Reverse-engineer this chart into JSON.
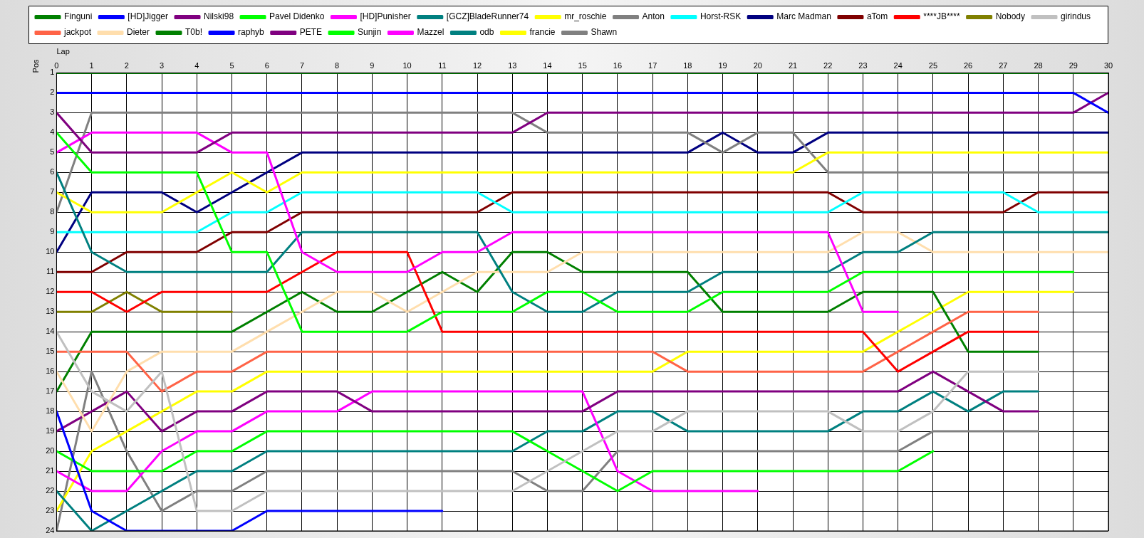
{
  "chart_data": {
    "type": "line",
    "xlabel": "Lap",
    "ylabel": "Pos",
    "x": [
      0,
      1,
      2,
      3,
      4,
      5,
      6,
      7,
      8,
      9,
      10,
      11,
      12,
      13,
      14,
      15,
      16,
      17,
      18,
      19,
      20,
      21,
      22,
      23,
      24,
      25,
      26,
      27,
      28,
      29,
      30
    ],
    "xlim": [
      0,
      30
    ],
    "xticks": [
      0,
      1,
      2,
      3,
      4,
      5,
      6,
      7,
      8,
      9,
      10,
      11,
      12,
      13,
      14,
      15,
      16,
      17,
      18,
      19,
      20,
      21,
      22,
      23,
      24,
      25,
      26,
      27,
      28,
      29,
      30
    ],
    "ylim": [
      24,
      1
    ],
    "yticks": [
      1,
      2,
      3,
      4,
      5,
      6,
      7,
      8,
      9,
      10,
      11,
      12,
      13,
      14,
      15,
      16,
      17,
      18,
      19,
      20,
      21,
      22,
      23,
      24
    ],
    "grid": true,
    "legend": "top",
    "marker": "none",
    "line_style": "solid",
    "series": [
      {
        "name": "Finguni",
        "color": "#008000",
        "values": [
          1,
          1,
          1,
          1,
          1,
          1,
          1,
          1,
          1,
          1,
          1,
          1,
          1,
          1,
          1,
          1,
          1,
          1,
          1,
          1,
          1,
          1,
          1,
          1,
          1,
          1,
          1,
          1,
          1,
          1,
          1
        ]
      },
      {
        "name": "[HD]Jigger",
        "color": "#0000ff",
        "values": [
          2,
          2,
          2,
          2,
          2,
          2,
          2,
          2,
          2,
          2,
          2,
          2,
          2,
          2,
          2,
          2,
          2,
          2,
          2,
          2,
          2,
          2,
          2,
          2,
          2,
          2,
          2,
          2,
          2,
          2,
          3
        ]
      },
      {
        "name": "Nilski98",
        "color": "#800080",
        "values": [
          3,
          5,
          5,
          5,
          5,
          4,
          4,
          4,
          4,
          4,
          4,
          4,
          4,
          4,
          3,
          3,
          3,
          3,
          3,
          3,
          3,
          3,
          3,
          3,
          3,
          3,
          3,
          3,
          3,
          3,
          2
        ]
      },
      {
        "name": "Pavel Didenko",
        "color": "#00ff00",
        "values": [
          4,
          6,
          6,
          6,
          6,
          10,
          10,
          14,
          14,
          14,
          14,
          13,
          13,
          13,
          12,
          12,
          13,
          13,
          13,
          12,
          12,
          12,
          12,
          11,
          11,
          11,
          11,
          11,
          11,
          11,
          null
        ]
      },
      {
        "name": "[HD]Punisher",
        "color": "#ff00ff",
        "values": [
          5,
          4,
          4,
          4,
          4,
          5,
          5,
          10,
          11,
          11,
          11,
          10,
          10,
          9,
          9,
          9,
          9,
          9,
          9,
          9,
          9,
          9,
          9,
          13,
          13,
          null,
          null,
          null,
          null,
          null,
          null
        ]
      },
      {
        "name": "[GCZ]BladeRunner74",
        "color": "#008080",
        "values": [
          6,
          10,
          11,
          11,
          11,
          11,
          11,
          9,
          9,
          9,
          9,
          9,
          9,
          12,
          13,
          13,
          12,
          12,
          12,
          11,
          11,
          11,
          11,
          10,
          10,
          9,
          9,
          9,
          9,
          9,
          9
        ]
      },
      {
        "name": "mr_roschie",
        "color": "#ffff00",
        "values": [
          7,
          8,
          8,
          8,
          7,
          6,
          7,
          6,
          6,
          6,
          6,
          6,
          6,
          6,
          6,
          6,
          6,
          6,
          6,
          6,
          6,
          6,
          5,
          5,
          5,
          5,
          5,
          5,
          5,
          5,
          5
        ]
      },
      {
        "name": "Anton",
        "color": "#808080",
        "values": [
          8,
          3,
          3,
          3,
          3,
          3,
          3,
          3,
          3,
          3,
          3,
          3,
          3,
          3,
          4,
          4,
          4,
          4,
          4,
          5,
          4,
          4,
          6,
          6,
          6,
          6,
          6,
          6,
          6,
          6,
          6
        ]
      },
      {
        "name": "Horst-RSK",
        "color": "#00ffff",
        "values": [
          9,
          9,
          9,
          9,
          9,
          8,
          8,
          7,
          7,
          7,
          7,
          7,
          7,
          8,
          8,
          8,
          8,
          8,
          8,
          8,
          8,
          8,
          8,
          7,
          7,
          7,
          7,
          7,
          8,
          8,
          8
        ]
      },
      {
        "name": "Marc Madman",
        "color": "#000080",
        "values": [
          10,
          7,
          7,
          7,
          8,
          7,
          6,
          5,
          5,
          5,
          5,
          5,
          5,
          5,
          5,
          5,
          5,
          5,
          5,
          4,
          5,
          5,
          4,
          4,
          4,
          4,
          4,
          4,
          4,
          4,
          4
        ]
      },
      {
        "name": "aTom",
        "color": "#800000",
        "values": [
          11,
          11,
          10,
          10,
          10,
          9,
          9,
          8,
          8,
          8,
          8,
          8,
          8,
          7,
          7,
          7,
          7,
          7,
          7,
          7,
          7,
          7,
          7,
          8,
          8,
          8,
          8,
          8,
          7,
          7,
          7
        ]
      },
      {
        "name": "****JB****",
        "color": "#ff0000",
        "values": [
          12,
          12,
          13,
          12,
          12,
          12,
          12,
          11,
          10,
          10,
          10,
          14,
          14,
          14,
          14,
          14,
          14,
          14,
          14,
          14,
          14,
          14,
          14,
          14,
          16,
          15,
          14,
          14,
          14,
          null,
          null
        ]
      },
      {
        "name": "Nobody",
        "color": "#808000",
        "values": [
          13,
          13,
          12,
          13,
          13,
          13,
          null,
          null,
          null,
          null,
          null,
          null,
          null,
          null,
          null,
          null,
          null,
          null,
          null,
          null,
          null,
          null,
          null,
          null,
          null,
          null,
          null,
          null,
          null,
          null,
          null
        ]
      },
      {
        "name": "girindus",
        "color": "#c0c0c0",
        "values": [
          14,
          17,
          18,
          16,
          23,
          23,
          22,
          22,
          22,
          22,
          22,
          22,
          22,
          22,
          21,
          20,
          19,
          19,
          18,
          18,
          18,
          18,
          18,
          19,
          19,
          18,
          16,
          16,
          16,
          null,
          null
        ]
      },
      {
        "name": "jackpot",
        "color": "#ff6347",
        "values": [
          15,
          15,
          15,
          17,
          16,
          16,
          15,
          15,
          15,
          15,
          15,
          15,
          15,
          15,
          15,
          15,
          15,
          15,
          16,
          16,
          16,
          16,
          16,
          16,
          15,
          14,
          13,
          13,
          13,
          null,
          null
        ]
      },
      {
        "name": "Dieter",
        "color": "#ffdead",
        "values": [
          16,
          19,
          16,
          15,
          15,
          15,
          14,
          13,
          12,
          12,
          13,
          12,
          11,
          11,
          11,
          10,
          10,
          10,
          10,
          10,
          10,
          10,
          10,
          9,
          9,
          10,
          10,
          10,
          10,
          10,
          10
        ]
      },
      {
        "name": "T0b!",
        "color": "#008000",
        "values": [
          17,
          14,
          14,
          14,
          14,
          14,
          13,
          12,
          13,
          13,
          12,
          11,
          12,
          10,
          10,
          11,
          11,
          11,
          11,
          13,
          13,
          13,
          13,
          12,
          12,
          12,
          15,
          15,
          15,
          null,
          null
        ]
      },
      {
        "name": "raphyb",
        "color": "#0000ff",
        "values": [
          18,
          23,
          24,
          24,
          24,
          24,
          23,
          23,
          23,
          23,
          23,
          23,
          null,
          null,
          null,
          null,
          null,
          null,
          null,
          null,
          null,
          null,
          null,
          null,
          null,
          null,
          null,
          null,
          null,
          null,
          null
        ]
      },
      {
        "name": "PETE",
        "color": "#800080",
        "values": [
          19,
          18,
          17,
          19,
          18,
          18,
          17,
          17,
          17,
          18,
          18,
          18,
          18,
          18,
          18,
          18,
          17,
          17,
          17,
          17,
          17,
          17,
          17,
          17,
          17,
          16,
          17,
          18,
          18,
          null,
          null
        ]
      },
      {
        "name": "Sunjin",
        "color": "#00ff00",
        "values": [
          20,
          21,
          21,
          21,
          20,
          20,
          19,
          19,
          19,
          19,
          19,
          19,
          19,
          19,
          20,
          21,
          22,
          21,
          21,
          21,
          21,
          21,
          21,
          21,
          21,
          20,
          null,
          null,
          null,
          null,
          null
        ]
      },
      {
        "name": "Mazzel",
        "color": "#ff00ff",
        "values": [
          21,
          22,
          22,
          20,
          19,
          19,
          18,
          18,
          18,
          17,
          17,
          17,
          17,
          17,
          17,
          17,
          21,
          22,
          22,
          22,
          22,
          null,
          null,
          null,
          null,
          null,
          null,
          null,
          null,
          null,
          null
        ]
      },
      {
        "name": "odb",
        "color": "#008080",
        "values": [
          22,
          24,
          23,
          22,
          21,
          21,
          20,
          20,
          20,
          20,
          20,
          20,
          20,
          20,
          19,
          19,
          18,
          18,
          19,
          19,
          19,
          19,
          19,
          18,
          18,
          17,
          18,
          17,
          17,
          null,
          null
        ]
      },
      {
        "name": "francie",
        "color": "#ffff00",
        "values": [
          23,
          20,
          19,
          18,
          17,
          17,
          16,
          16,
          16,
          16,
          16,
          16,
          16,
          16,
          16,
          16,
          16,
          16,
          15,
          15,
          15,
          15,
          15,
          15,
          14,
          13,
          12,
          12,
          12,
          12,
          null
        ]
      },
      {
        "name": "Shawn",
        "color": "#808080",
        "values": [
          24,
          16,
          20,
          23,
          22,
          22,
          21,
          21,
          21,
          21,
          21,
          21,
          21,
          21,
          22,
          22,
          20,
          20,
          20,
          20,
          20,
          20,
          20,
          20,
          20,
          19,
          19,
          19,
          19,
          null,
          null
        ]
      }
    ]
  }
}
